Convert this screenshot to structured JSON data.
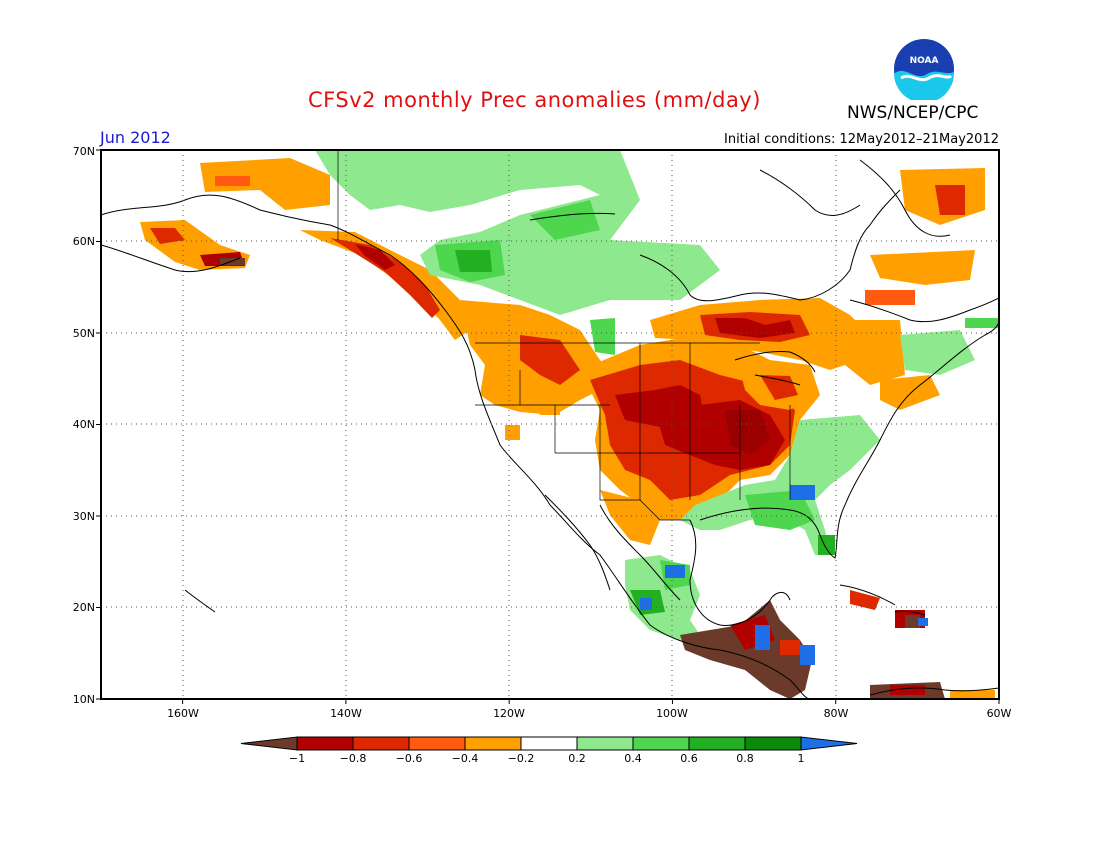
{
  "header": {
    "title": "CFSv2 monthly Prec anomalies (mm/day)",
    "agency": "NWS/NCEP/CPC",
    "logo_text": "NOAA",
    "month_label": "Jun 2012",
    "init_conditions": "Initial conditions: 12May2012–21May2012"
  },
  "map": {
    "lat_ticks": [
      "70N",
      "60N",
      "50N",
      "40N",
      "30N",
      "20N",
      "10N"
    ],
    "lon_ticks": [
      "160W",
      "140W",
      "120W",
      "100W",
      "80W",
      "60W"
    ],
    "lat_values": [
      70,
      60,
      50,
      40,
      30,
      20,
      10
    ],
    "lon_values": [
      -160,
      -140,
      -120,
      -100,
      -80,
      -60
    ],
    "lat_range": [
      10,
      70
    ],
    "lon_range": [
      -170,
      -60
    ],
    "grid": "dotted"
  },
  "legend": {
    "labels": [
      "−1",
      "−0.8",
      "−0.6",
      "−0.4",
      "−0.2",
      "0.2",
      "0.4",
      "0.6",
      "0.8",
      "1"
    ],
    "colors": [
      "#6b3a2a",
      "#b00000",
      "#dd2800",
      "#ff5a10",
      "#ffa000",
      "#ffffff",
      "#8ee88e",
      "#4ed64e",
      "#22b022",
      "#0a8a0a",
      "#1e6ee6"
    ]
  },
  "anomaly_regions": [
    {
      "name": "central-plains-dry",
      "level": -0.8,
      "lat": [
        35,
        46
      ],
      "lon": [
        -106,
        -85
      ]
    },
    {
      "name": "midwest-core-dry",
      "level": -1.0,
      "lat": [
        36,
        41
      ],
      "lon": [
        -97,
        -88
      ]
    },
    {
      "name": "great-basin-dry",
      "level": -0.4,
      "lat": [
        40,
        48
      ],
      "lon": [
        -124,
        -112
      ]
    },
    {
      "name": "ontario-dry",
      "level": -0.8,
      "lat": [
        49,
        52
      ],
      "lon": [
        -96,
        -86
      ]
    },
    {
      "name": "southeast-wet",
      "level": 0.6,
      "lat": [
        28,
        36
      ],
      "lon": [
        -92,
        -78
      ]
    },
    {
      "name": "gulf-coast-wet",
      "level": 0.6,
      "lat": [
        27,
        31
      ],
      "lon": [
        -100,
        -88
      ]
    },
    {
      "name": "canada-interior-wet",
      "level": 0.4,
      "lat": [
        54,
        64
      ],
      "lon": [
        -128,
        -108
      ]
    },
    {
      "name": "central-america-very-dry",
      "level": -1.0,
      "lat": [
        10,
        17
      ],
      "lon": [
        -98,
        -84
      ]
    },
    {
      "name": "alaska-coast-dry",
      "level": -0.6,
      "lat": [
        55,
        61
      ],
      "lon": [
        -152,
        -130
      ]
    },
    {
      "name": "labrador-dry",
      "level": -0.4,
      "lat": [
        56,
        68
      ],
      "lon": [
        -78,
        -64
      ]
    }
  ]
}
